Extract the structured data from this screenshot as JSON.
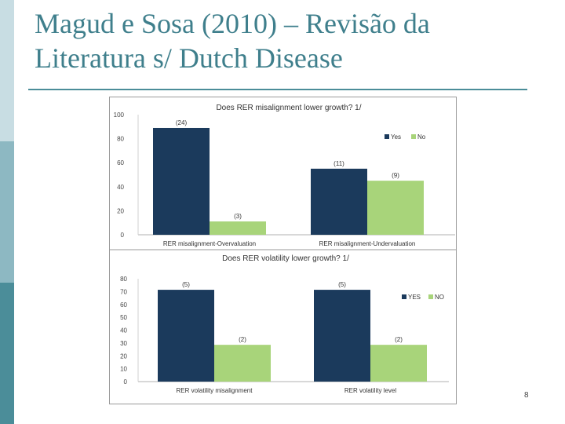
{
  "slide": {
    "title_line1": "Magud e Sosa (2010) – Revisão da",
    "title_line2": "Literatura s/ Dutch Disease",
    "page_number": "8"
  },
  "colors": {
    "accent": "#3f7f8c",
    "yes": "#1b3a5c",
    "no": "#a8d47a"
  },
  "chart_data": [
    {
      "type": "bar",
      "title": "Does RER misalignment lower growth? 1/",
      "categories": [
        "RER misalignment-Overvaluation",
        "RER misalignment-Undervaluation"
      ],
      "series": [
        {
          "name": "Yes",
          "values": [
            88.9,
            55.0
          ]
        },
        {
          "name": "No",
          "values": [
            11.1,
            45.0
          ]
        }
      ],
      "data_labels": [
        [
          "(24)",
          "(11)"
        ],
        [
          "(3)",
          "(9)"
        ]
      ],
      "yticks": [
        "100",
        "80",
        "60",
        "40",
        "20",
        "0"
      ],
      "ylim": [
        0,
        100
      ],
      "legend": "right"
    },
    {
      "type": "bar",
      "title": "Does RER volatility lower growth? 1/",
      "categories": [
        "RER volatility misalignment",
        "RER volatility level"
      ],
      "series": [
        {
          "name": "YES",
          "values": [
            71.4,
            71.4
          ]
        },
        {
          "name": "NO",
          "values": [
            28.6,
            28.6
          ]
        }
      ],
      "data_labels": [
        [
          "(5)",
          "(5)"
        ],
        [
          "(2)",
          "(2)"
        ]
      ],
      "yticks": [
        "80",
        "70",
        "60",
        "50",
        "40",
        "30",
        "20",
        "10",
        "0"
      ],
      "ylim": [
        0,
        80
      ],
      "legend": "right"
    }
  ]
}
